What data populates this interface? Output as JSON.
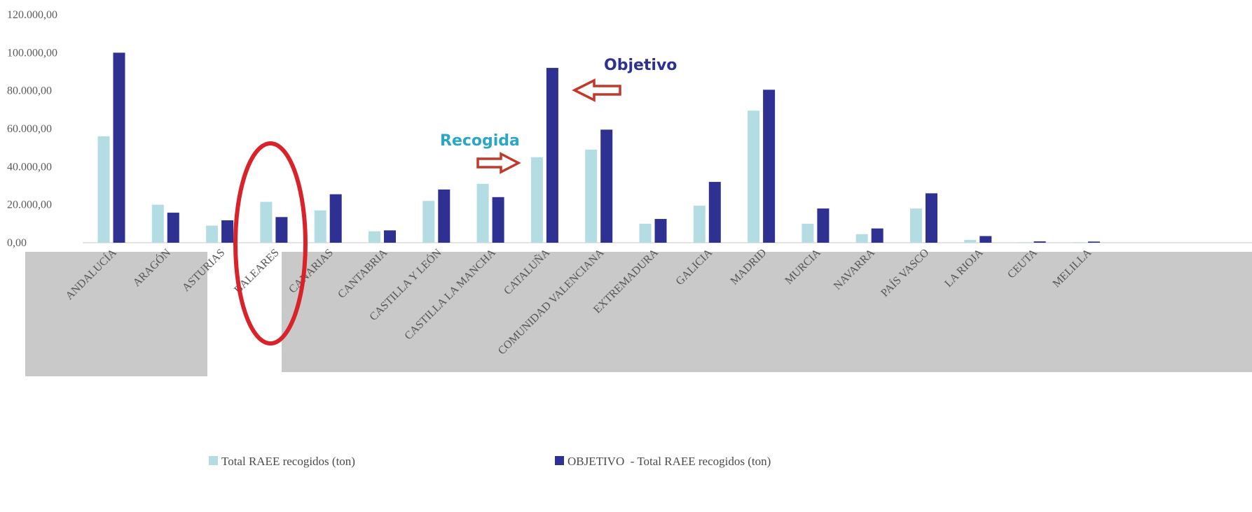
{
  "chart_data": {
    "type": "bar",
    "categories": [
      "ANDALUCÍA",
      "ARAGÓN",
      "ASTURIAS",
      "BALEARES",
      "CANARIAS",
      "CANTABRIA",
      "CASTILLA Y LEÓN",
      "CASTILLA LA MANCHA",
      "CATALUÑA",
      "COMUNIDAD VALENCIANA",
      "EXTREMADURA",
      "GALICIA",
      "MADRID",
      "MURCIA",
      "NAVARRA",
      "PAÍS VASCO",
      "LA RIOJA",
      "CEUTA",
      "MELILLA"
    ],
    "series": [
      {
        "name": "Total RAEE recogidos (ton)",
        "color": "#b4dde3",
        "values": [
          56000,
          20000,
          9000,
          21500,
          17000,
          6000,
          22000,
          31000,
          45000,
          49000,
          10000,
          19500,
          69500,
          10000,
          4500,
          18000,
          1500,
          300,
          300
        ]
      },
      {
        "name": "OBJETIVO  - Total RAEE recogidos (ton)",
        "color": "#2e3192",
        "values": [
          100000,
          15800,
          11800,
          13500,
          25500,
          6500,
          28000,
          24000,
          92000,
          59500,
          12500,
          32000,
          80500,
          18000,
          7500,
          26000,
          3500,
          700,
          600
        ]
      }
    ],
    "yticks": [
      "0,00",
      "20.000,00",
      "40.000,00",
      "60.000,00",
      "80.000,00",
      "100.000,00",
      "120.000,00"
    ],
    "ylim": [
      0,
      120000
    ],
    "annotations": [
      {
        "text": "Objetivo",
        "color": "#2e3192"
      },
      {
        "text": "Recogida",
        "color": "#2ba6c4"
      }
    ],
    "legend_position": "bottom"
  }
}
